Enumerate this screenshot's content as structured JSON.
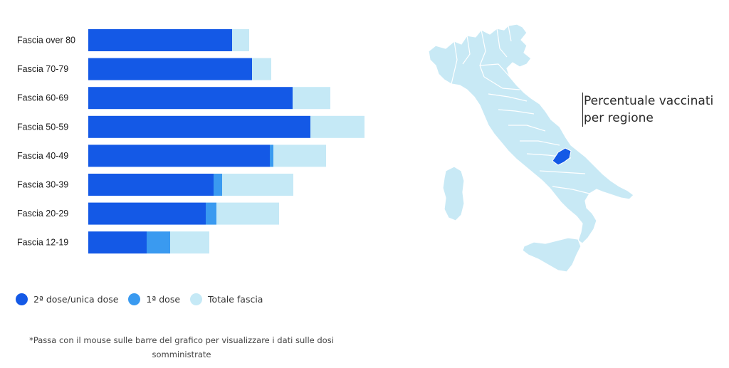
{
  "colors": {
    "second_dose": "#1459e6",
    "first_dose": "#3a9af0",
    "total": "#c5e9f6",
    "map_region": "#c8e9f5",
    "map_border": "#ffffff",
    "map_highlight": "#1459e6"
  },
  "chart_data": {
    "type": "bar",
    "orientation": "horizontal",
    "stacked": true,
    "categories": [
      "Fascia over 80",
      "Fascia 70-79",
      "Fascia 60-69",
      "Fascia 50-59",
      "Fascia 40-49",
      "Fascia 30-39",
      "Fascia 20-29",
      "Fascia 12-19"
    ],
    "series": [
      {
        "name": "2ª dose/unica dose",
        "color": "#1459e6",
        "values": [
          202,
          230,
          287,
          312,
          255,
          176,
          165,
          82
        ]
      },
      {
        "name": "1ª dose",
        "color": "#3a9af0",
        "values": [
          0,
          0,
          0,
          0,
          5,
          12,
          15,
          33
        ]
      },
      {
        "name": "Totale fascia",
        "color": "#c5e9f6",
        "values": [
          24,
          27,
          53,
          76,
          74,
          100,
          88,
          55
        ]
      }
    ],
    "title": "",
    "xlabel": "",
    "ylabel": "",
    "grid": false,
    "legend_position": "bottom"
  },
  "legend": {
    "items": [
      {
        "label": "2ª dose/unica dose",
        "color": "#1459e6"
      },
      {
        "label": "1ª dose",
        "color": "#3a9af0"
      },
      {
        "label": "Totale fascia",
        "color": "#c5e9f6"
      }
    ]
  },
  "footnote": {
    "line1": "*Passa con il mouse sulle barre del grafico per visualizzare i dati sulle dosi",
    "line2": "somministrate"
  },
  "map": {
    "title_line1": "Percentuale vaccinati",
    "title_line2": "per regione",
    "highlighted_region": "Molise"
  }
}
